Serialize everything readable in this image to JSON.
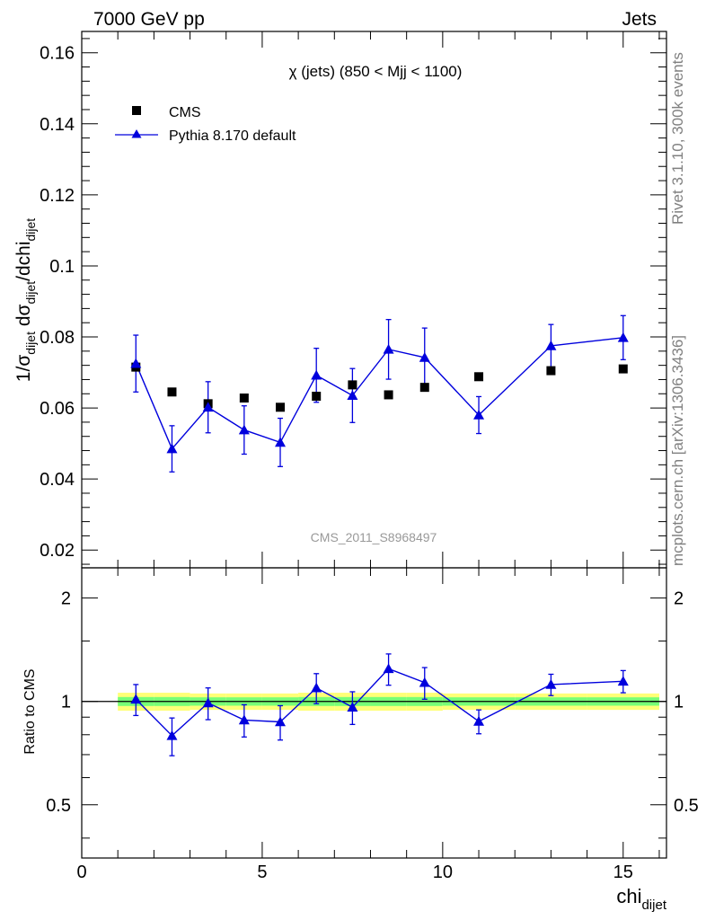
{
  "header": {
    "left": "7000 GeV pp",
    "right": "Jets"
  },
  "side_labels": {
    "rivet": "Rivet 3.1.10,  300k events",
    "mcplots": "mcplots.cern.ch [arXiv:1306.3436]"
  },
  "watermark": "CMS_2011_S8968497",
  "chart_data": [
    {
      "type": "scatter",
      "title": "χ (jets) (850 < Mjj < 1100)",
      "ylabel": "1/σdijet dσdijet/dchidijet",
      "xlim": [
        0,
        16.2
      ],
      "ylim": [
        0.015,
        0.166
      ],
      "yticks": [
        "0.02",
        "0.04",
        "0.06",
        "0.08",
        "0.1",
        "0.12",
        "0.14",
        "0.16"
      ],
      "legend_position": "top-left",
      "series": [
        {
          "name": "CMS",
          "marker": "square",
          "color": "#000000",
          "x": [
            1.5,
            2.5,
            3.5,
            4.5,
            5.5,
            6.5,
            7.5,
            8.5,
            9.5,
            11,
            13,
            15
          ],
          "y": [
            0.0715,
            0.0645,
            0.0612,
            0.0628,
            0.0602,
            0.0633,
            0.0665,
            0.0637,
            0.0658,
            0.0688,
            0.0705,
            0.071
          ],
          "yerr": [
            0.0008,
            0.0004,
            0.0004,
            0.0004,
            0.0004,
            0.0005,
            0.0006,
            0.0004,
            0.0005,
            0.0005,
            0.0005,
            0.0005
          ]
        },
        {
          "name": "Pythia 8.170 default",
          "marker": "triangle",
          "color": "#0000dd",
          "x": [
            1.5,
            2.5,
            3.5,
            4.5,
            5.5,
            6.5,
            7.5,
            8.5,
            9.5,
            11,
            13,
            15
          ],
          "y": [
            0.0725,
            0.0485,
            0.0602,
            0.0538,
            0.0503,
            0.0692,
            0.0635,
            0.0765,
            0.0742,
            0.058,
            0.0775,
            0.0798
          ],
          "yerr": [
            0.008,
            0.0065,
            0.0072,
            0.0068,
            0.0068,
            0.0076,
            0.0076,
            0.0084,
            0.0083,
            0.0052,
            0.006,
            0.0062
          ]
        }
      ]
    },
    {
      "type": "scatter",
      "ylabel": "Ratio to CMS",
      "xlabel": "chidijet",
      "xlim": [
        0,
        16.2
      ],
      "ylim": [
        0.35,
        2.45
      ],
      "log_y": true,
      "xticks": [
        "0",
        "5",
        "10",
        "15"
      ],
      "yticks": [
        "0.5",
        "1",
        "2"
      ],
      "band": {
        "x_edges": [
          1,
          2,
          3,
          4,
          5,
          6,
          7,
          8,
          9,
          10,
          12,
          14,
          16
        ],
        "yellow_half": [
          0.06,
          0.06,
          0.055,
          0.055,
          0.055,
          0.06,
          0.06,
          0.06,
          0.06,
          0.055,
          0.055,
          0.055
        ],
        "green_half": [
          0.03,
          0.03,
          0.028,
          0.028,
          0.028,
          0.03,
          0.03,
          0.03,
          0.03,
          0.028,
          0.028,
          0.028
        ]
      },
      "series": [
        {
          "name": "Pythia 8.170 default",
          "color": "#0000dd",
          "x": [
            1.5,
            2.5,
            3.5,
            4.5,
            5.5,
            6.5,
            7.5,
            8.5,
            9.5,
            11,
            13,
            15
          ],
          "y": [
            1.015,
            0.795,
            0.99,
            0.883,
            0.872,
            1.095,
            0.962,
            1.245,
            1.135,
            0.875,
            1.12,
            1.145
          ],
          "yerr": [
            0.105,
            0.1,
            0.105,
            0.095,
            0.1,
            0.11,
            0.105,
            0.13,
            0.12,
            0.07,
            0.08,
            0.085
          ]
        }
      ]
    }
  ],
  "colors": {
    "band_yellow": "#ffff77",
    "band_green": "#77ff77",
    "mc": "#0000dd",
    "data": "#000000"
  }
}
